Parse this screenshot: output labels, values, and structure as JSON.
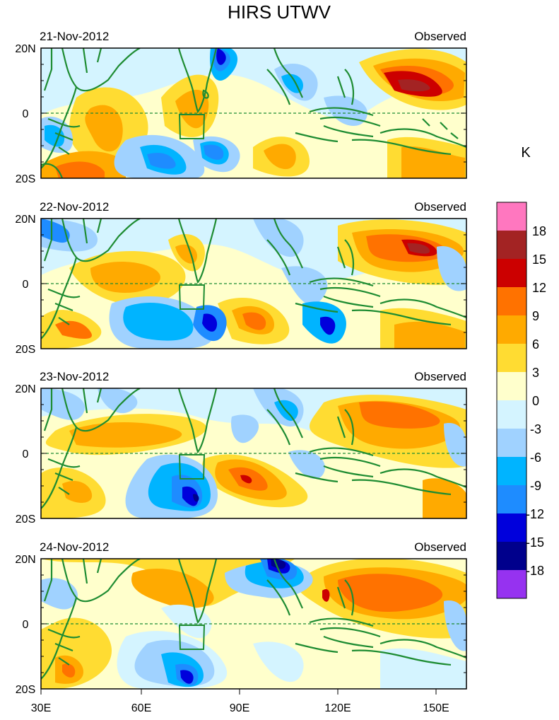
{
  "title": "HIRS UTWV",
  "panels": [
    {
      "date": "21-Nov-2012",
      "label": "Observed"
    },
    {
      "date": "22-Nov-2012",
      "label": "Observed"
    },
    {
      "date": "23-Nov-2012",
      "label": "Observed"
    },
    {
      "date": "24-Nov-2012",
      "label": "Observed"
    }
  ],
  "lat_labels": [
    "20N",
    "0",
    "20S"
  ],
  "lon_labels": [
    "30E",
    "60E",
    "90E",
    "120E",
    "150E"
  ],
  "unit": "K",
  "colorbar": {
    "labels": [
      "18",
      "15",
      "12",
      "9",
      "6",
      "3",
      "0",
      "-3",
      "-6",
      "-9",
      "-12",
      "-15",
      "-18"
    ],
    "colors": [
      "#ff77bf",
      "#a32323",
      "#cc0000",
      "#ff7200",
      "#ffaa00",
      "#ffdc32",
      "#ffffcc",
      "#d4f4ff",
      "#a0d2ff",
      "#00b4ff",
      "#1e8cff",
      "#0000dc",
      "#00008c",
      "#9632f0"
    ]
  },
  "map_colors": {
    "land_outline": "#1e8c32",
    "box_outline": "#1e8c32",
    "equator_line": "#1e8c32"
  }
}
